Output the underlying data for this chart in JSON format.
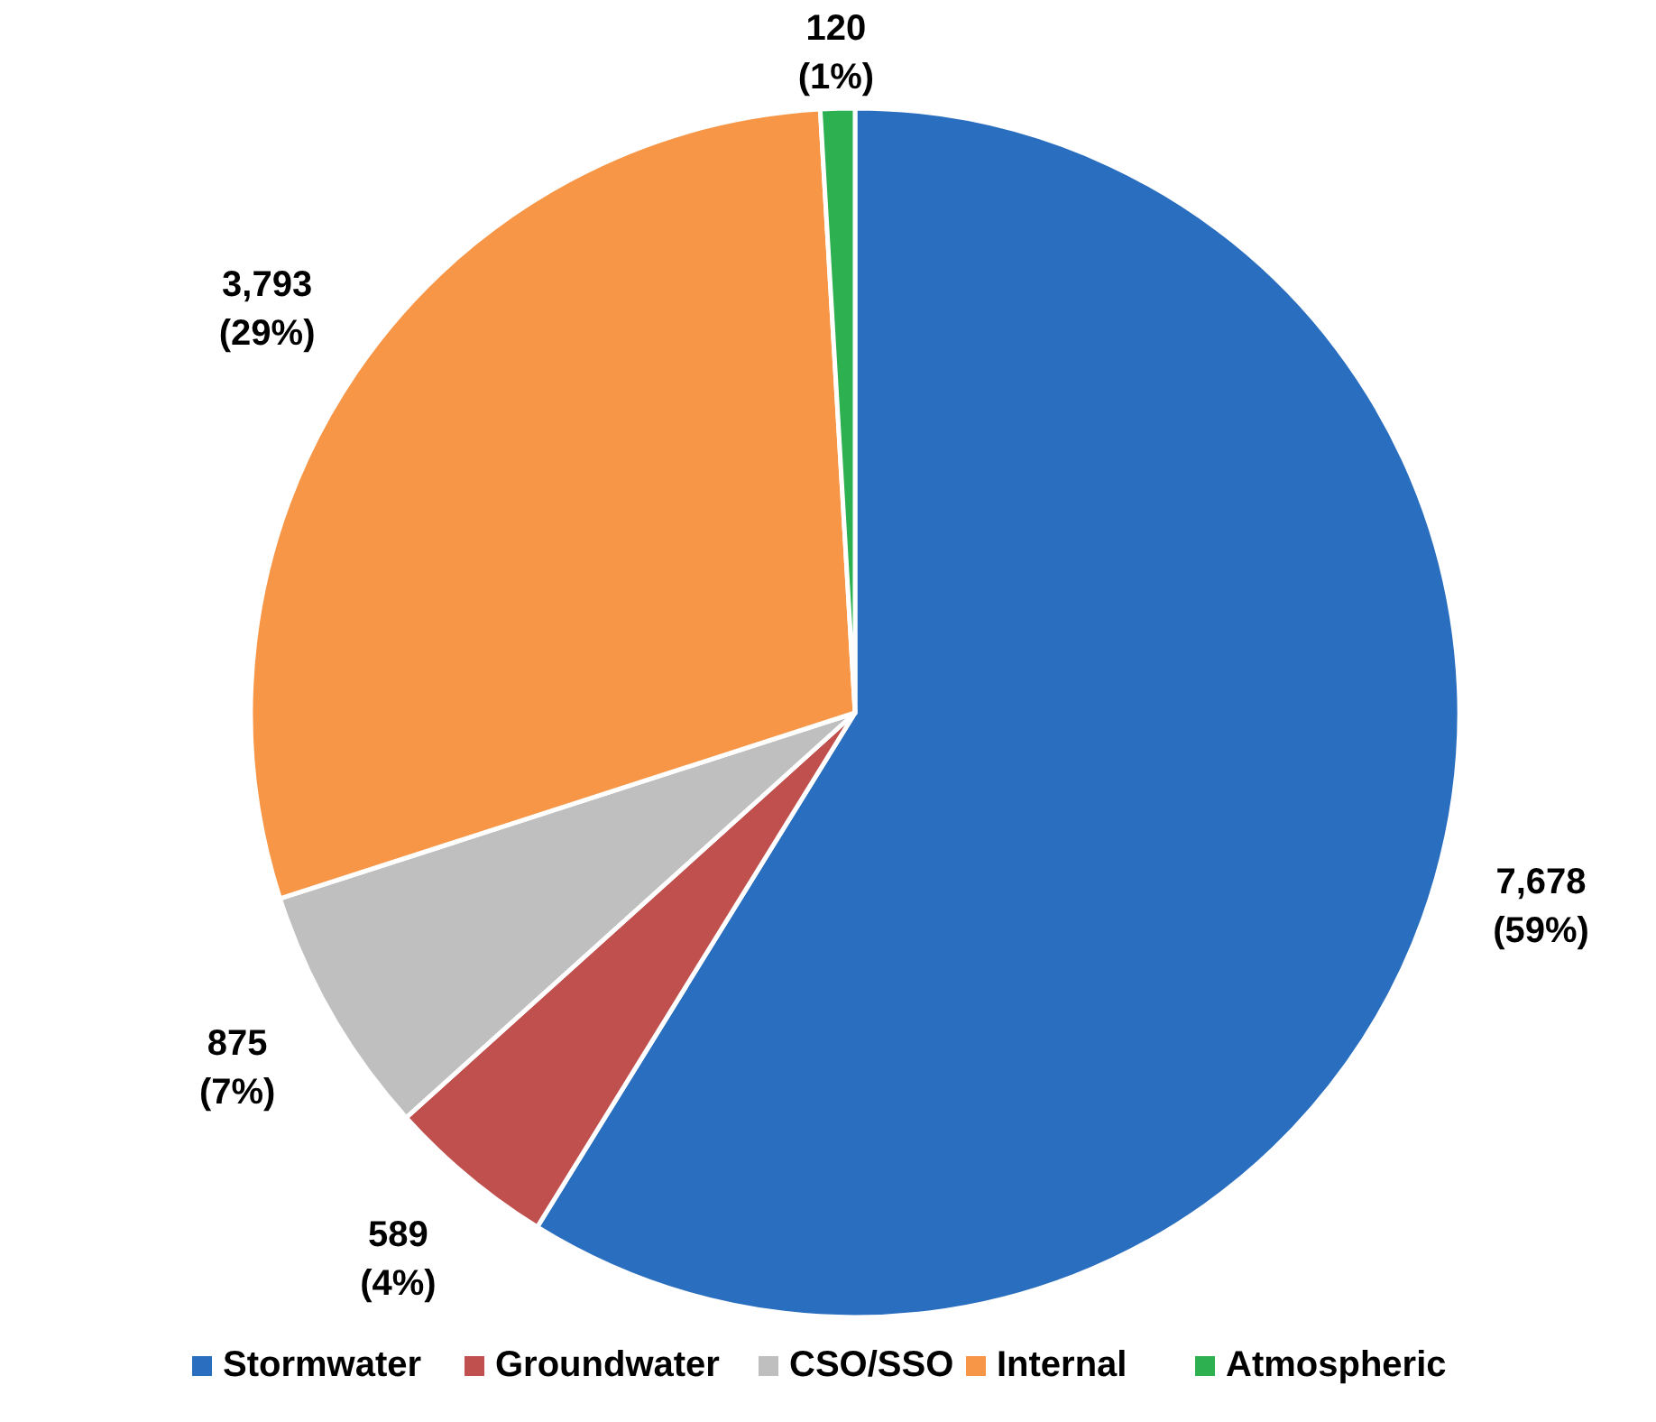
{
  "chart_data": {
    "type": "pie",
    "categories": [
      "Stormwater",
      "Groundwater",
      "CSO/SSO",
      "Internal",
      "Atmospheric"
    ],
    "values": [
      7678,
      589,
      875,
      3793,
      120
    ],
    "colors": [
      "#2a6ebf",
      "#c0504d",
      "#bfbfbf",
      "#f79646",
      "#2db050"
    ],
    "value_labels": [
      "7,678 (59%)",
      "589 (4%)",
      "875 (7%)",
      "3,793 (29%)",
      "120 (1%)"
    ],
    "legend": "bottom"
  }
}
